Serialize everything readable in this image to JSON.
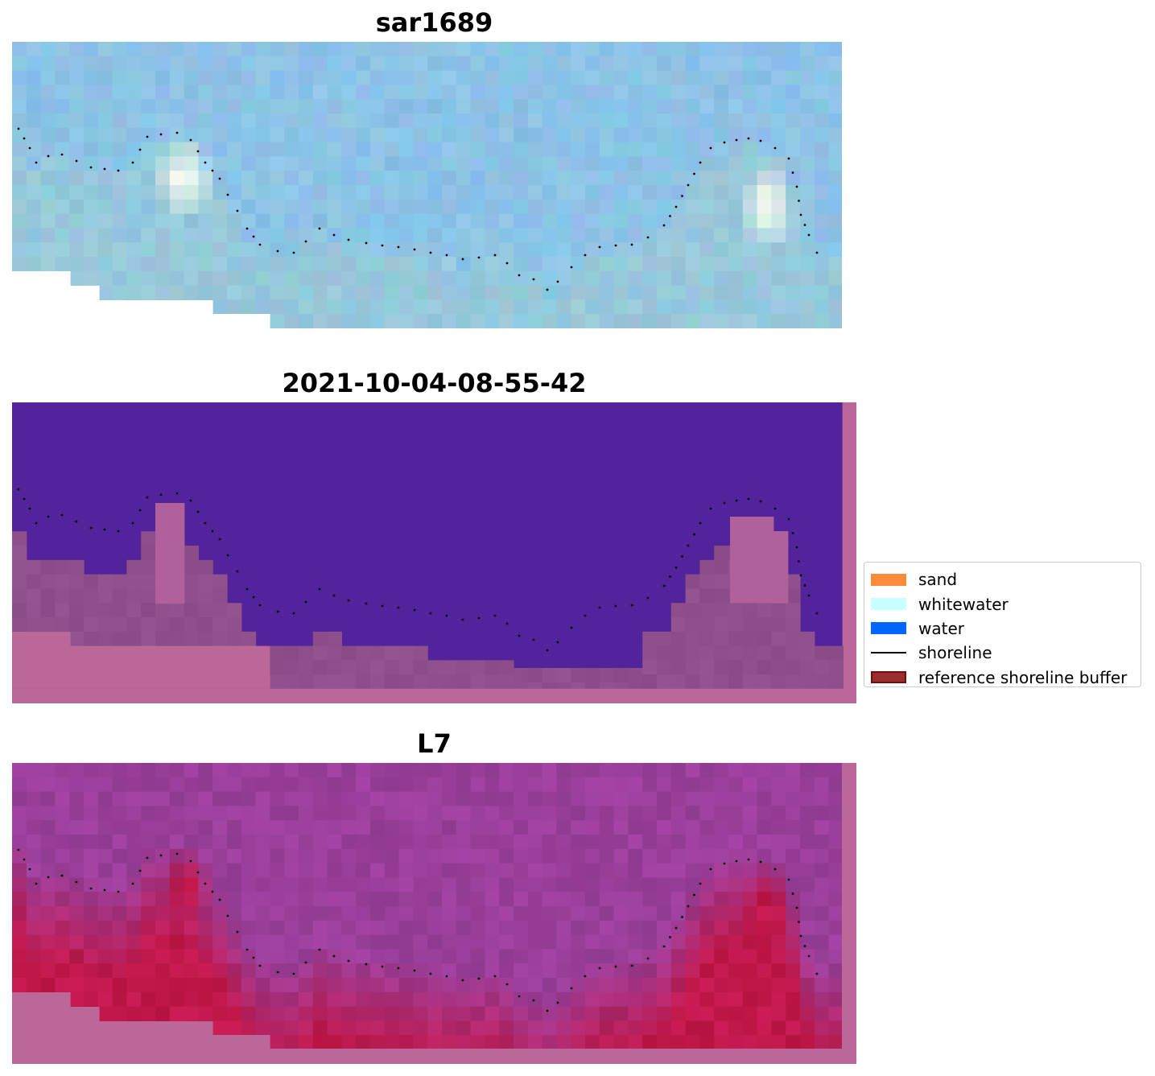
{
  "panels": [
    {
      "title": "sar1689"
    },
    {
      "title": "2021-10-04-08-55-42"
    },
    {
      "title": "L7"
    }
  ],
  "legend": {
    "items": [
      {
        "label": "sand",
        "color": "#ff8c3a",
        "kind": "patch"
      },
      {
        "label": "whitewater",
        "color": "#c8ffff",
        "kind": "patch"
      },
      {
        "label": "water",
        "color": "#0064ff",
        "kind": "patch"
      },
      {
        "label": "shoreline",
        "color": "#000000",
        "kind": "line"
      },
      {
        "label": "reference shoreline buffer",
        "color": "#9b2d2d",
        "kind": "patch-bordered"
      }
    ]
  },
  "colors": {
    "rgb_sky": "#8ec7e6",
    "classified_water": "#52239a",
    "classified_buffer": "#bb6899",
    "classified_sand_overlay": "#8e4f8a",
    "ndwi_purple": "#9a3f9b",
    "ndwi_red": "#c0184a",
    "shoreline_dots": "#000000"
  }
}
